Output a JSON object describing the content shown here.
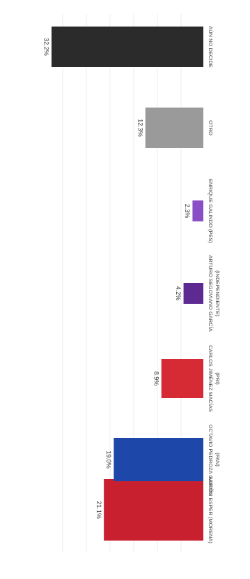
{
  "chart_data": {
    "type": "bar",
    "orientation": "horizontal",
    "rotated": true,
    "title": "",
    "xlabel": "",
    "ylabel": "",
    "grid": true,
    "xlim": [
      0,
      35
    ],
    "categories": [
      [
        "ADRIÁN ESPER (MORENA)"
      ],
      [
        "OCTAVIO PEDROZA GAITÁN",
        "(PAN)"
      ],
      [
        "CARLOS JIMÉNEZ MACÍAS",
        "(PRI)"
      ],
      [
        "ARTURO SEGOVIANO GARCÍA",
        "(INDEPENDIENTE)"
      ],
      [
        "ENRIQUE GALINDO (PES)"
      ],
      [
        "OTRO"
      ],
      [
        "AÚN NO DECIDE"
      ]
    ],
    "values": [
      21.1,
      19.0,
      8.9,
      4.2,
      2.3,
      12.3,
      32.2
    ],
    "value_labels": [
      "21.1%",
      "19.0%",
      "8.9%",
      "4.2%",
      "2.3%",
      "12.3%",
      "32.2%"
    ],
    "colors": [
      "#c8202e",
      "#1d47a8",
      "#d62a35",
      "#5c2a91",
      "#8a4fc4",
      "#9a9a9a",
      "#2b2b2b"
    ]
  }
}
